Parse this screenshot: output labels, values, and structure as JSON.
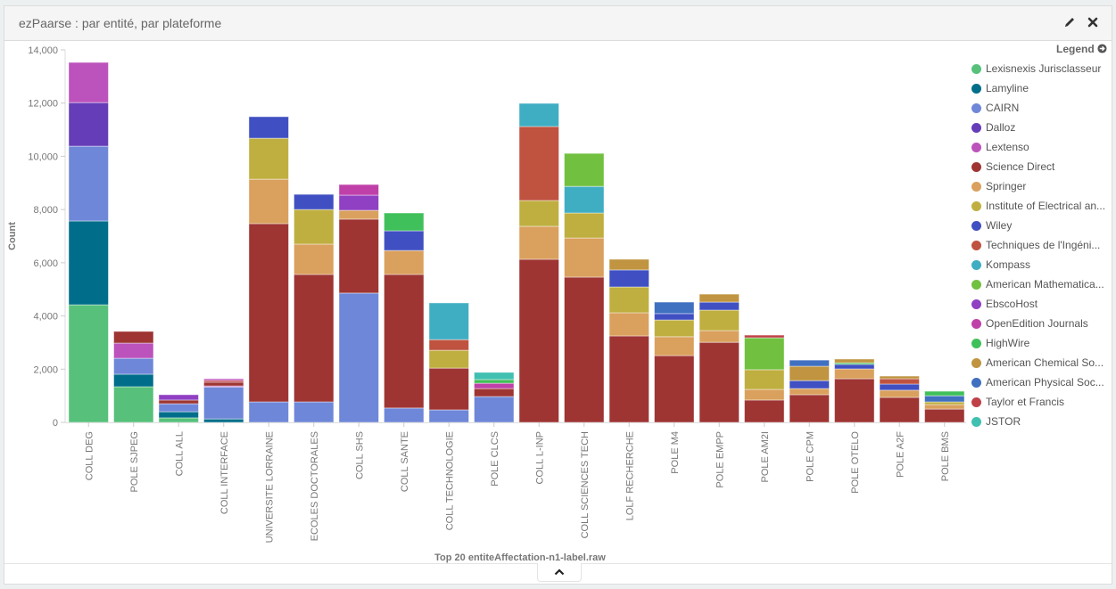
{
  "panel": {
    "title": "ezPaarse : par entité, par plateforme",
    "edit_icon": "pencil-icon",
    "close_icon": "close-icon",
    "collapse_icon": "chevron-up-icon"
  },
  "legend": {
    "title": "Legend",
    "toggle_icon": "arrow-circle-right-icon",
    "items": [
      {
        "label": "Lexisnexis Jurisclasseur",
        "color": "#57c17b"
      },
      {
        "label": "Lamyline",
        "color": "#006e8a"
      },
      {
        "label": "CAIRN",
        "color": "#6f87d8"
      },
      {
        "label": "Dalloz",
        "color": "#663db8"
      },
      {
        "label": "Lextenso",
        "color": "#bc52bc"
      },
      {
        "label": "Science Direct",
        "color": "#9e3533"
      },
      {
        "label": "Springer",
        "color": "#daa05d"
      },
      {
        "label": "Institute of Electrical an...",
        "color": "#bfaf40"
      },
      {
        "label": "Wiley",
        "color": "#4050c2"
      },
      {
        "label": "Techniques de l'Ingéni...",
        "color": "#bf5340"
      },
      {
        "label": "Kompass",
        "color": "#40aec2"
      },
      {
        "label": "American Mathematica...",
        "color": "#72c040"
      },
      {
        "label": "EbscoHost",
        "color": "#9040c2"
      },
      {
        "label": "OpenEdition Journals",
        "color": "#c040a9"
      },
      {
        "label": "HighWire",
        "color": "#40c05a"
      },
      {
        "label": "American Chemical So...",
        "color": "#c09440"
      },
      {
        "label": "American Physical Soc...",
        "color": "#4070c0"
      },
      {
        "label": "Taylor et Francis",
        "color": "#c04048"
      },
      {
        "label": "JSTOR",
        "color": "#40c0b0"
      }
    ]
  },
  "chart_data": {
    "type": "bar",
    "stacked": true,
    "title": "",
    "xlabel": "Top 20 entiteAffectation-n1-label.raw",
    "ylabel": "Count",
    "ylim": [
      0,
      14000
    ],
    "yticks": [
      "0",
      "2,000",
      "4,000",
      "6,000",
      "8,000",
      "10,000",
      "12,000",
      "14,000"
    ],
    "ytick_values": [
      0,
      2000,
      4000,
      6000,
      8000,
      10000,
      12000,
      14000
    ],
    "legend_position": "right",
    "grid": false,
    "categories": [
      "COLL DEG",
      "POLE SJPEG",
      "COLL ALL",
      "COLL INTERFACE",
      "UNIVERSITE LORRAINE",
      "ECOLES DOCTORALES",
      "COLL SHS",
      "COLL SANTE",
      "COLL TECHNOLOGIE",
      "POLE CLCS",
      "COLL L-INP",
      "COLL SCIENCES TECH",
      "LOLF RECHERCHE",
      "POLE M4",
      "POLE EMPP",
      "POLE AM2I",
      "POLE CPM",
      "POLE OTELO",
      "POLE A2F",
      "POLE BMS"
    ],
    "stacks": [
      [
        {
          "s": "Lexisnexis Jurisclasseur",
          "v": 4420
        },
        {
          "s": "Lamyline",
          "v": 3150
        },
        {
          "s": "CAIRN",
          "v": 2810
        },
        {
          "s": "Dalloz",
          "v": 1640
        },
        {
          "s": "Lextenso",
          "v": 1510
        }
      ],
      [
        {
          "s": "Lexisnexis Jurisclasseur",
          "v": 1340
        },
        {
          "s": "Lamyline",
          "v": 470
        },
        {
          "s": "CAIRN",
          "v": 600
        },
        {
          "s": "Lextenso",
          "v": 570
        },
        {
          "s": "Science Direct",
          "v": 440
        }
      ],
      [
        {
          "s": "Lexisnexis Jurisclasseur",
          "v": 170
        },
        {
          "s": "Lamyline",
          "v": 230
        },
        {
          "s": "CAIRN",
          "v": 300
        },
        {
          "s": "Science Direct",
          "v": 140
        },
        {
          "s": "EbscoHost",
          "v": 200
        }
      ],
      [
        {
          "s": "Lamyline",
          "v": 130
        },
        {
          "s": "CAIRN",
          "v": 1200
        },
        {
          "s": "Lextenso",
          "v": 40
        },
        {
          "s": "Science Direct",
          "v": 140
        },
        {
          "s": "Taylor et Francis",
          "v": 70
        },
        {
          "s": "Lextenso",
          "v": 60
        }
      ],
      [
        {
          "s": "CAIRN",
          "v": 770
        },
        {
          "s": "Science Direct",
          "v": 6700
        },
        {
          "s": "Springer",
          "v": 1670
        },
        {
          "s": "Institute of Electrical an...",
          "v": 1540
        },
        {
          "s": "Wiley",
          "v": 810
        }
      ],
      [
        {
          "s": "CAIRN",
          "v": 770
        },
        {
          "s": "Science Direct",
          "v": 4790
        },
        {
          "s": "Springer",
          "v": 1140
        },
        {
          "s": "Institute of Electrical an...",
          "v": 1300
        },
        {
          "s": "Wiley",
          "v": 570
        }
      ],
      [
        {
          "s": "CAIRN",
          "v": 4860
        },
        {
          "s": "Science Direct",
          "v": 2780
        },
        {
          "s": "Springer",
          "v": 330
        },
        {
          "s": "EbscoHost",
          "v": 570
        },
        {
          "s": "OpenEdition Journals",
          "v": 400
        }
      ],
      [
        {
          "s": "CAIRN",
          "v": 540
        },
        {
          "s": "Science Direct",
          "v": 5020
        },
        {
          "s": "Springer",
          "v": 900
        },
        {
          "s": "Wiley",
          "v": 740
        },
        {
          "s": "HighWire",
          "v": 670
        }
      ],
      [
        {
          "s": "CAIRN",
          "v": 470
        },
        {
          "s": "Science Direct",
          "v": 1570
        },
        {
          "s": "Institute of Electrical an...",
          "v": 670
        },
        {
          "s": "Techniques de l'Ingéni...",
          "v": 400
        },
        {
          "s": "Kompass",
          "v": 1380
        }
      ],
      [
        {
          "s": "CAIRN",
          "v": 970
        },
        {
          "s": "Science Direct",
          "v": 300
        },
        {
          "s": "OpenEdition Journals",
          "v": 200
        },
        {
          "s": "HighWire",
          "v": 140
        },
        {
          "s": "JSTOR",
          "v": 270
        }
      ],
      [
        {
          "s": "Science Direct",
          "v": 6130
        },
        {
          "s": "Springer",
          "v": 1240
        },
        {
          "s": "Institute of Electrical an...",
          "v": 970
        },
        {
          "s": "Techniques de l'Ingéni...",
          "v": 2780
        },
        {
          "s": "Kompass",
          "v": 870
        }
      ],
      [
        {
          "s": "Science Direct",
          "v": 5460
        },
        {
          "s": "Springer",
          "v": 1470
        },
        {
          "s": "Institute of Electrical an...",
          "v": 940
        },
        {
          "s": "Kompass",
          "v": 1000
        },
        {
          "s": "American Mathematica...",
          "v": 1240
        }
      ],
      [
        {
          "s": "Science Direct",
          "v": 3250
        },
        {
          "s": "Springer",
          "v": 870
        },
        {
          "s": "Institute of Electrical an...",
          "v": 970
        },
        {
          "s": "Wiley",
          "v": 640
        },
        {
          "s": "American Chemical So...",
          "v": 400
        }
      ],
      [
        {
          "s": "Science Direct",
          "v": 2510
        },
        {
          "s": "Springer",
          "v": 710
        },
        {
          "s": "Institute of Electrical an...",
          "v": 630
        },
        {
          "s": "Wiley",
          "v": 240
        },
        {
          "s": "American Physical Soc...",
          "v": 430
        }
      ],
      [
        {
          "s": "Science Direct",
          "v": 3010
        },
        {
          "s": "Springer",
          "v": 440
        },
        {
          "s": "Institute of Electrical an...",
          "v": 770
        },
        {
          "s": "Wiley",
          "v": 300
        },
        {
          "s": "American Chemical So...",
          "v": 300
        }
      ],
      [
        {
          "s": "Science Direct",
          "v": 840
        },
        {
          "s": "Springer",
          "v": 400
        },
        {
          "s": "Institute of Electrical an...",
          "v": 740
        },
        {
          "s": "American Mathematica...",
          "v": 1200
        },
        {
          "s": "Taylor et Francis",
          "v": 100
        }
      ],
      [
        {
          "s": "Science Direct",
          "v": 1040
        },
        {
          "s": "Springer",
          "v": 230
        },
        {
          "s": "Wiley",
          "v": 300
        },
        {
          "s": "American Chemical So...",
          "v": 540
        },
        {
          "s": "American Physical Soc...",
          "v": 230
        }
      ],
      [
        {
          "s": "Science Direct",
          "v": 1640
        },
        {
          "s": "Springer",
          "v": 370
        },
        {
          "s": "Wiley",
          "v": 170
        },
        {
          "s": "HighWire",
          "v": 60
        },
        {
          "s": "American Chemical So...",
          "v": 140
        }
      ],
      [
        {
          "s": "Science Direct",
          "v": 940
        },
        {
          "s": "Springer",
          "v": 270
        },
        {
          "s": "Wiley",
          "v": 230
        },
        {
          "s": "Techniques de l'Ingéni...",
          "v": 200
        },
        {
          "s": "American Chemical So...",
          "v": 100
        }
      ],
      [
        {
          "s": "Science Direct",
          "v": 500
        },
        {
          "s": "Springer",
          "v": 170
        },
        {
          "s": "Institute of Electrical an...",
          "v": 100
        },
        {
          "s": "American Physical Soc...",
          "v": 230
        },
        {
          "s": "HighWire",
          "v": 170
        }
      ]
    ]
  }
}
